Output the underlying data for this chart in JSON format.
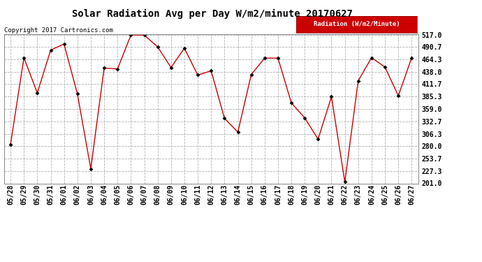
{
  "title": "Solar Radiation Avg per Day W/m2/minute 20170627",
  "copyright": "Copyright 2017 Cartronics.com",
  "legend_label": "Radiation (W/m2/Minute)",
  "dates": [
    "05/28",
    "05/29",
    "05/30",
    "05/31",
    "06/01",
    "06/02",
    "06/03",
    "06/04",
    "06/05",
    "06/06",
    "06/07",
    "06/08",
    "06/09",
    "06/10",
    "06/11",
    "06/12",
    "06/13",
    "06/14",
    "06/15",
    "06/16",
    "06/17",
    "06/18",
    "06/19",
    "06/20",
    "06/21",
    "06/22",
    "06/23",
    "06/24",
    "06/25",
    "06/26",
    "06/27"
  ],
  "values": [
    284,
    468,
    393,
    484,
    497,
    391,
    232,
    446,
    444,
    516,
    516,
    491,
    447,
    488,
    431,
    440,
    339,
    310,
    432,
    467,
    467,
    372,
    340,
    295,
    385,
    204,
    419,
    468,
    448,
    387,
    468
  ],
  "y_ticks": [
    201.0,
    227.3,
    253.7,
    280.0,
    306.3,
    332.7,
    359.0,
    385.3,
    411.7,
    438.0,
    464.3,
    490.7,
    517.0
  ],
  "line_color": "#cc0000",
  "marker_color": "#000000",
  "bg_color": "#ffffff",
  "plot_bg_color": "#ffffff",
  "grid_color": "#b0b0b0",
  "title_fontsize": 10,
  "copyright_fontsize": 6.5,
  "tick_fontsize": 7,
  "legend_bg": "#cc0000",
  "legend_text_color": "#ffffff",
  "legend_fontsize": 6.5
}
